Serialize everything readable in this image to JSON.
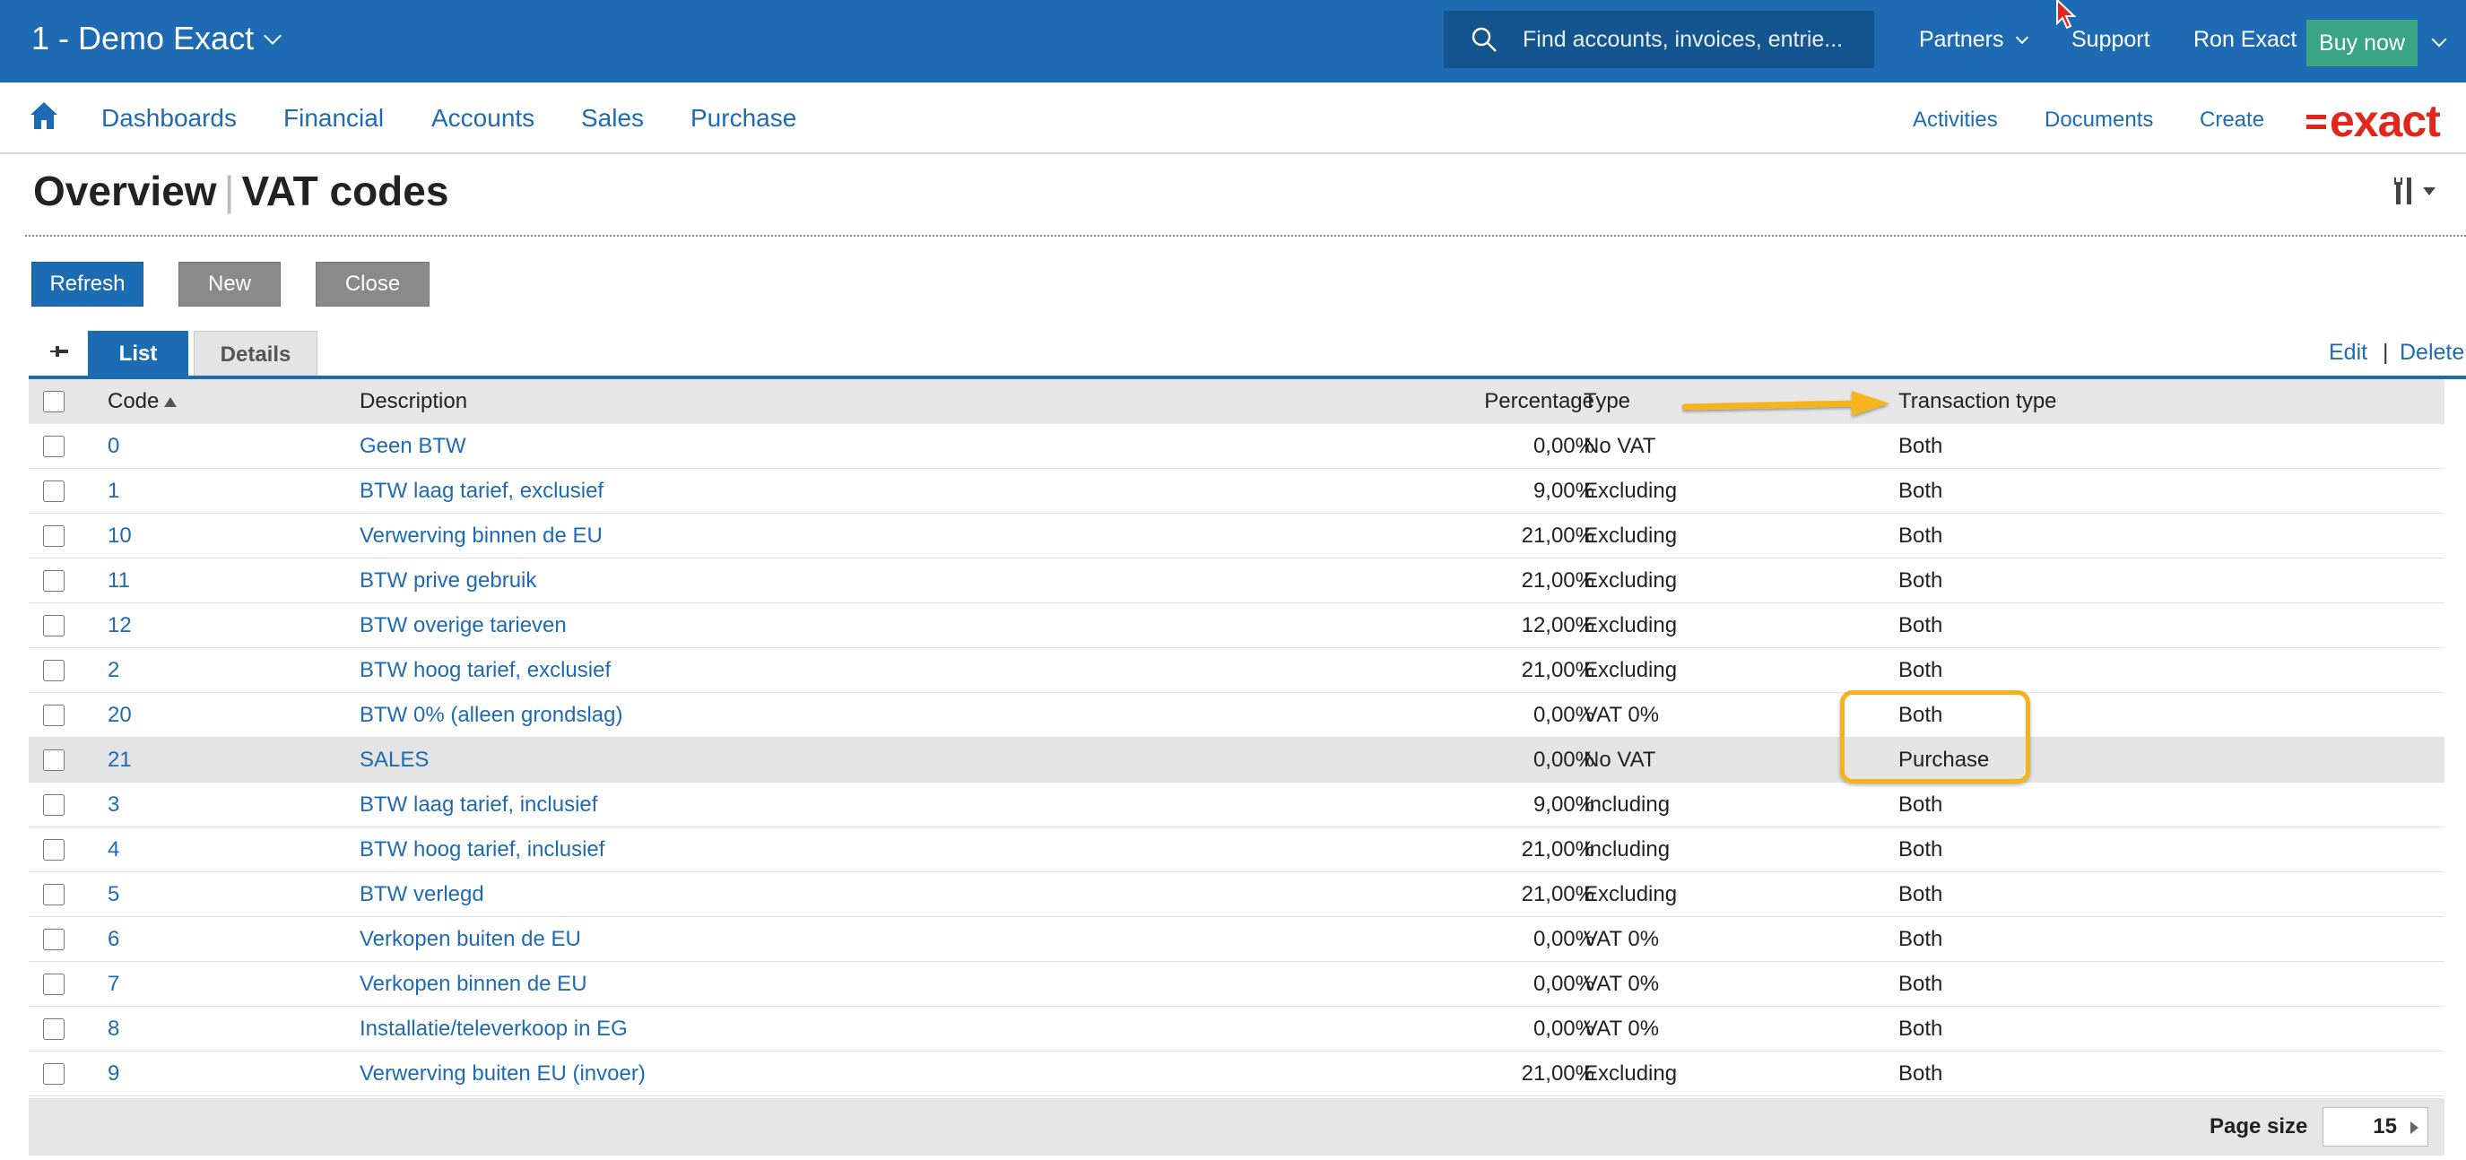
{
  "topbar": {
    "division": "1 - Demo Exact",
    "search_placeholder": "Find accounts, invoices, entrie...",
    "partners": "Partners",
    "support": "Support",
    "user": "Ron Exact",
    "buy_now": "Buy now"
  },
  "nav": {
    "items": [
      "Dashboards",
      "Financial",
      "Accounts",
      "Sales",
      "Purchase"
    ],
    "right": [
      "Activities",
      "Documents",
      "Create"
    ],
    "logo": "exact"
  },
  "page": {
    "title_prefix": "Overview",
    "title": "VAT codes"
  },
  "buttons": {
    "refresh": "Refresh",
    "new": "New",
    "close": "Close"
  },
  "tabs": {
    "list": "List",
    "details": "Details"
  },
  "actions": {
    "edit": "Edit",
    "separator": "|",
    "delete": "Delete"
  },
  "table": {
    "headers": {
      "code": "Code",
      "description": "Description",
      "percentage": "Percentage",
      "type": "Type",
      "transaction_type": "Transaction type"
    },
    "sort": {
      "column": "code",
      "direction": "ascending"
    },
    "rows": [
      {
        "code": "0",
        "description": "Geen BTW",
        "percentage": "0,00%",
        "type": "No VAT",
        "transaction_type": "Both"
      },
      {
        "code": "1",
        "description": "BTW laag tarief, exclusief",
        "percentage": "9,00%",
        "type": "Excluding",
        "transaction_type": "Both"
      },
      {
        "code": "10",
        "description": "Verwerving binnen de EU",
        "percentage": "21,00%",
        "type": "Excluding",
        "transaction_type": "Both"
      },
      {
        "code": "11",
        "description": "BTW prive gebruik",
        "percentage": "21,00%",
        "type": "Excluding",
        "transaction_type": "Both"
      },
      {
        "code": "12",
        "description": "BTW overige tarieven",
        "percentage": "12,00%",
        "type": "Excluding",
        "transaction_type": "Both"
      },
      {
        "code": "2",
        "description": "BTW hoog tarief, exclusief",
        "percentage": "21,00%",
        "type": "Excluding",
        "transaction_type": "Both"
      },
      {
        "code": "20",
        "description": "BTW 0% (alleen grondslag)",
        "percentage": "0,00%",
        "type": "VAT 0%",
        "transaction_type": "Both"
      },
      {
        "code": "21",
        "description": "SALES",
        "percentage": "0,00%",
        "type": "No VAT",
        "transaction_type": "Purchase"
      },
      {
        "code": "3",
        "description": "BTW laag tarief, inclusief",
        "percentage": "9,00%",
        "type": "Including",
        "transaction_type": "Both"
      },
      {
        "code": "4",
        "description": "BTW hoog tarief, inclusief",
        "percentage": "21,00%",
        "type": "Including",
        "transaction_type": "Both"
      },
      {
        "code": "5",
        "description": "BTW verlegd",
        "percentage": "21,00%",
        "type": "Excluding",
        "transaction_type": "Both"
      },
      {
        "code": "6",
        "description": "Verkopen buiten de EU",
        "percentage": "0,00%",
        "type": "VAT 0%",
        "transaction_type": "Both"
      },
      {
        "code": "7",
        "description": "Verkopen binnen de EU",
        "percentage": "0,00%",
        "type": "VAT 0%",
        "transaction_type": "Both"
      },
      {
        "code": "8",
        "description": "Installatie/televerkoop in EG",
        "percentage": "0,00%",
        "type": "VAT 0%",
        "transaction_type": "Both"
      },
      {
        "code": "9",
        "description": "Verwerving buiten EU (invoer)",
        "percentage": "21,00%",
        "type": "Excluding",
        "transaction_type": "Both"
      }
    ],
    "highlighted_row_index": 7
  },
  "footer": {
    "page_size_label": "Page size",
    "page_size": "15"
  },
  "colors": {
    "brand_blue": "#1e6ab3",
    "buy_now_green": "#3aa582",
    "logo_red": "#e1261c",
    "annotation_orange": "#f5b31b"
  },
  "icons": [
    "search-icon",
    "home-icon",
    "chevron-down-icon",
    "tools-icon",
    "pin-icon",
    "sort-ascending-icon",
    "mouse-cursor-icon"
  ]
}
